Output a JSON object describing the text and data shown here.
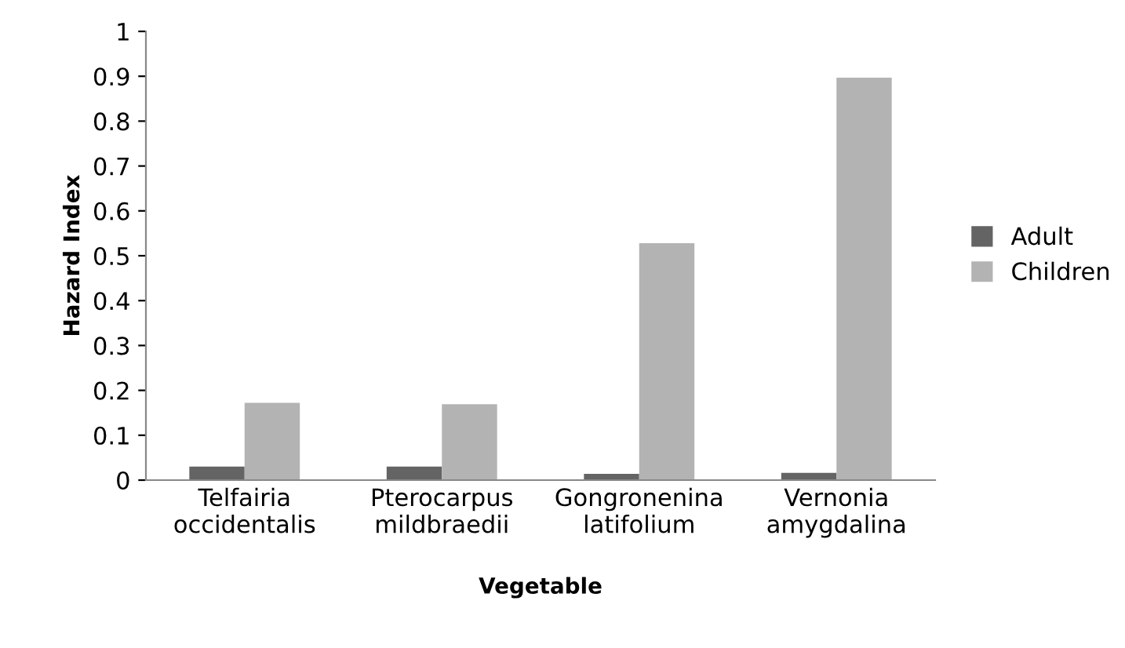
{
  "chart_data": {
    "type": "bar",
    "xlabel": "Vegetable",
    "ylabel": "Hazard Index",
    "categories": [
      "Telfairia\noccidentalis",
      "Pterocarpus\nmildbraedii",
      "Gongronenina\nlatifolium",
      "Vernonia\namygdalina"
    ],
    "series": [
      {
        "name": "Adult",
        "color": "#646464",
        "values": [
          0.03,
          0.03,
          0.014,
          0.016
        ]
      },
      {
        "name": "Children",
        "color": "#b3b3b3",
        "values": [
          0.172,
          0.169,
          0.528,
          0.897
        ]
      }
    ],
    "ylim": [
      0,
      1
    ],
    "yticks": [
      0,
      0.1,
      0.2,
      0.3,
      0.4,
      0.5,
      0.6,
      0.7,
      0.8,
      0.9,
      1
    ],
    "grid": false,
    "legend": "right"
  }
}
